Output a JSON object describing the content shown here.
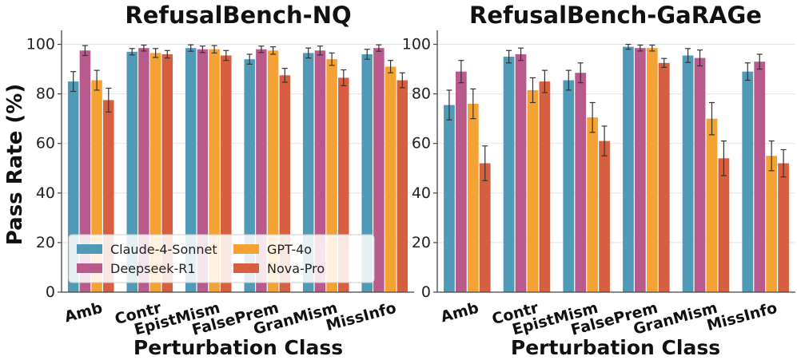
{
  "chart_data": [
    {
      "type": "bar",
      "title": "RefusalBench-NQ",
      "xlabel": "Perturbation Class",
      "ylabel": "Pass Rate (%)",
      "ylim": [
        0,
        105
      ],
      "yticks": [
        0,
        20,
        40,
        60,
        80,
        100
      ],
      "grid": true,
      "categories": [
        "Amb",
        "Contr",
        "EpistMism",
        "FalsePrem",
        "GranMism",
        "MissInfo"
      ],
      "series": [
        {
          "name": "Claude-4-Sonnet",
          "values": [
            85,
            97,
            98.5,
            94,
            96.5,
            96
          ],
          "errors": [
            4,
            1.3,
            1.3,
            2,
            2,
            2
          ]
        },
        {
          "name": "Deepseek-R1",
          "values": [
            97.5,
            98.5,
            98,
            98,
            97.5,
            98.5
          ],
          "errors": [
            2,
            1.2,
            1.3,
            1.3,
            1.8,
            1.3
          ]
        },
        {
          "name": "GPT-4o",
          "values": [
            85.5,
            96.5,
            98,
            97.5,
            94,
            91
          ],
          "errors": [
            4,
            1.8,
            1.5,
            1.5,
            2.5,
            2.5
          ]
        },
        {
          "name": "Nova-Pro",
          "values": [
            77.5,
            96,
            95.5,
            87.5,
            86.5,
            85.5
          ],
          "errors": [
            4.8,
            1.5,
            2,
            2.8,
            3.2,
            3
          ]
        }
      ],
      "legend": {
        "placement": "lower-left",
        "columns": 2
      }
    },
    {
      "type": "bar",
      "title": "RefusalBench-GaRAGe",
      "xlabel": "Perturbation Class",
      "ylabel": "",
      "ylim": [
        0,
        105
      ],
      "yticks": [
        0,
        20,
        40,
        60,
        80,
        100
      ],
      "grid": true,
      "categories": [
        "Amb",
        "Contr",
        "EpistMism",
        "FalsePrem",
        "GranMism",
        "MissInfo"
      ],
      "series": [
        {
          "name": "Claude-4-Sonnet",
          "values": [
            75.5,
            95,
            85.5,
            99,
            95.5,
            89
          ],
          "errors": [
            6,
            2.5,
            4,
            1,
            2.8,
            3.5
          ]
        },
        {
          "name": "Deepseek-R1",
          "values": [
            89,
            96,
            88.5,
            98.5,
            94.5,
            93
          ],
          "errors": [
            4.5,
            2.5,
            4,
            1.2,
            3.2,
            3
          ]
        },
        {
          "name": "GPT-4o",
          "values": [
            76,
            81.5,
            70.5,
            98.5,
            70,
            55
          ],
          "errors": [
            6,
            5,
            6,
            1.2,
            6.5,
            6
          ]
        },
        {
          "name": "Nova-Pro",
          "values": [
            52,
            85,
            61,
            92.5,
            54,
            52
          ],
          "errors": [
            7,
            4.5,
            6,
            1.8,
            7,
            5.5
          ]
        }
      ]
    }
  ],
  "colors": {
    "Claude-4-Sonnet": "#4f9ab6",
    "Deepseek-R1": "#b85a8c",
    "GPT-4o": "#f4a233",
    "Nova-Pro": "#d55f3e",
    "grid": "#e3e3e3",
    "axis": "#444444",
    "errorbar": "#333333"
  }
}
